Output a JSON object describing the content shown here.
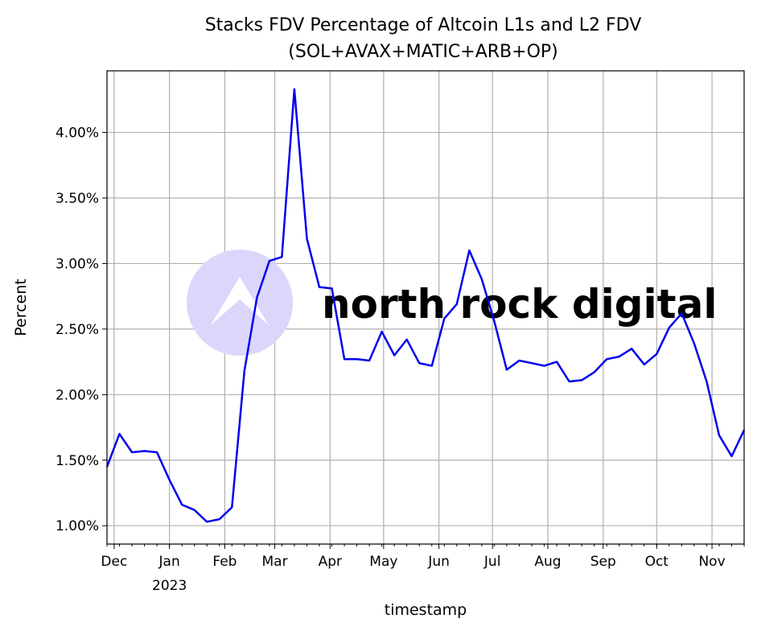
{
  "chart_data": {
    "type": "line",
    "title": "Stacks FDV Percentage of Altcoin L1s and L2 FDV",
    "subtitle": "(SOL+AVAX+MATIC+ARB+OP)",
    "xlabel": "timestamp",
    "ylabel": "Percent",
    "ylim": [
      0.86,
      4.47
    ],
    "xlim": [
      "2022-11-27",
      "2023-11-19"
    ],
    "grid": true,
    "line_color": "#0000ee",
    "y_ticks": [
      1.0,
      1.5,
      2.0,
      2.5,
      3.0,
      3.5,
      4.0
    ],
    "y_tick_labels": [
      "1.00%",
      "1.50%",
      "2.00%",
      "2.50%",
      "3.00%",
      "3.50%",
      "4.00%"
    ],
    "x_ticks": [
      {
        "date": "2022-12-01",
        "label": "Dec"
      },
      {
        "date": "2023-01-01",
        "label": "Jan",
        "sublabel": "2023"
      },
      {
        "date": "2023-02-01",
        "label": "Feb"
      },
      {
        "date": "2023-03-01",
        "label": "Mar"
      },
      {
        "date": "2023-04-01",
        "label": "Apr"
      },
      {
        "date": "2023-05-01",
        "label": "May"
      },
      {
        "date": "2023-06-01",
        "label": "Jun"
      },
      {
        "date": "2023-07-01",
        "label": "Jul"
      },
      {
        "date": "2023-08-01",
        "label": "Aug"
      },
      {
        "date": "2023-09-01",
        "label": "Sep"
      },
      {
        "date": "2023-10-01",
        "label": "Oct"
      },
      {
        "date": "2023-11-01",
        "label": "Nov"
      }
    ],
    "x_start": "2022-11-27",
    "x_step_days": 7,
    "values": [
      1.45,
      1.7,
      1.56,
      1.57,
      1.56,
      1.35,
      1.16,
      1.12,
      1.03,
      1.05,
      1.14,
      2.18,
      2.74,
      3.02,
      3.05,
      4.33,
      3.19,
      2.82,
      2.81,
      2.27,
      2.27,
      2.26,
      2.48,
      2.3,
      2.42,
      2.24,
      2.22,
      2.58,
      2.69,
      3.1,
      2.88,
      2.56,
      2.19,
      2.26,
      2.24,
      2.22,
      2.25,
      2.1,
      2.11,
      2.17,
      2.27,
      2.29,
      2.35,
      2.23,
      2.31,
      2.51,
      2.62,
      2.39,
      2.1,
      1.69,
      1.53,
      1.73
    ]
  },
  "watermark": {
    "text": "north rock digital",
    "circle_color": "#ddd6fb",
    "text_color": "#cfcfcf"
  }
}
